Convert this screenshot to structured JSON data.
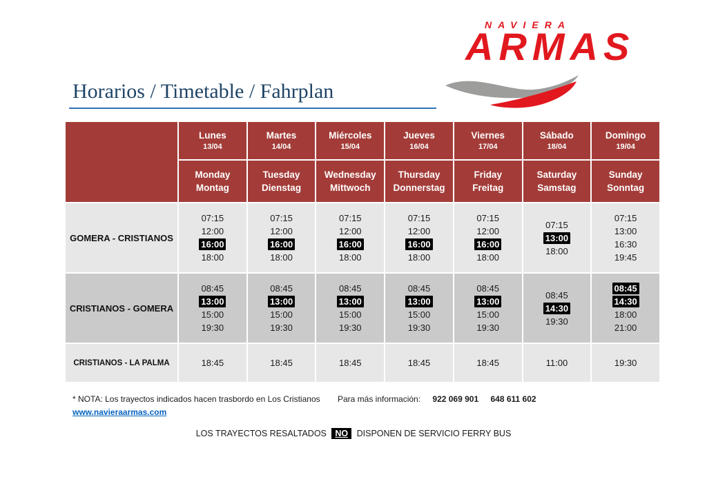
{
  "logo": {
    "naviera": "NAVIERA",
    "armas": "ARMAS"
  },
  "title": "Horarios / Timetable / Fahrplan",
  "colors": {
    "brand_red": "#e2181f",
    "swoosh_gray": "#9d9d9c",
    "title_navy": "#1f4467",
    "rule_blue": "#2e74b5",
    "header_red": "#a33c38",
    "row_light": "#e8e7e7",
    "row_dark": "#cbcaca",
    "highlight_bg": "#000000",
    "link_blue": "#0563c1"
  },
  "table": {
    "days": [
      {
        "name": "Lunes",
        "date": "13/04",
        "en": "Monday",
        "de": "Montag"
      },
      {
        "name": "Martes",
        "date": "14/04",
        "en": "Tuesday",
        "de": "Dienstag"
      },
      {
        "name": "Miércoles",
        "date": "15/04",
        "en": "Wednesday",
        "de": "Mittwoch"
      },
      {
        "name": "Jueves",
        "date": "16/04",
        "en": "Thursday",
        "de": "Donnerstag"
      },
      {
        "name": "Viernes",
        "date": "17/04",
        "en": "Friday",
        "de": "Freitag"
      },
      {
        "name": "Sábado",
        "date": "18/04",
        "en": "Saturday",
        "de": "Samstag"
      },
      {
        "name": "Domingo",
        "date": "19/04",
        "en": "Sunday",
        "de": "Sonntag"
      }
    ],
    "rows": [
      {
        "label": "GOMERA - CRISTIANOS",
        "bg": "#e8e7e7",
        "cells": [
          [
            {
              "time": "07:15",
              "highlighted": false
            },
            {
              "time": "12:00",
              "highlighted": false
            },
            {
              "time": "16:00",
              "highlighted": true
            },
            {
              "time": "18:00",
              "highlighted": false
            }
          ],
          [
            {
              "time": "07:15",
              "highlighted": false
            },
            {
              "time": "12:00",
              "highlighted": false
            },
            {
              "time": "16:00",
              "highlighted": true
            },
            {
              "time": "18:00",
              "highlighted": false
            }
          ],
          [
            {
              "time": "07:15",
              "highlighted": false
            },
            {
              "time": "12:00",
              "highlighted": false
            },
            {
              "time": "16:00",
              "highlighted": true
            },
            {
              "time": "18:00",
              "highlighted": false
            }
          ],
          [
            {
              "time": "07:15",
              "highlighted": false
            },
            {
              "time": "12:00",
              "highlighted": false
            },
            {
              "time": "16:00",
              "highlighted": true
            },
            {
              "time": "18:00",
              "highlighted": false
            }
          ],
          [
            {
              "time": "07:15",
              "highlighted": false
            },
            {
              "time": "12:00",
              "highlighted": false
            },
            {
              "time": "16:00",
              "highlighted": true
            },
            {
              "time": "18:00",
              "highlighted": false
            }
          ],
          [
            {
              "time": "07:15",
              "highlighted": false
            },
            {
              "time": "13:00",
              "highlighted": true
            },
            {
              "time": "18:00",
              "highlighted": false
            }
          ],
          [
            {
              "time": "07:15",
              "highlighted": false
            },
            {
              "time": "13:00",
              "highlighted": false
            },
            {
              "time": "16:30",
              "highlighted": false
            },
            {
              "time": "19:45",
              "highlighted": false
            }
          ]
        ]
      },
      {
        "label": "CRISTIANOS - GOMERA",
        "bg": "#cbcaca",
        "cells": [
          [
            {
              "time": "08:45",
              "highlighted": false
            },
            {
              "time": "13:00",
              "highlighted": true
            },
            {
              "time": "15:00",
              "highlighted": false
            },
            {
              "time": "19:30",
              "highlighted": false
            }
          ],
          [
            {
              "time": "08:45",
              "highlighted": false
            },
            {
              "time": "13:00",
              "highlighted": true
            },
            {
              "time": "15:00",
              "highlighted": false
            },
            {
              "time": "19:30",
              "highlighted": false
            }
          ],
          [
            {
              "time": "08:45",
              "highlighted": false
            },
            {
              "time": "13:00",
              "highlighted": true
            },
            {
              "time": "15:00",
              "highlighted": false
            },
            {
              "time": "19:30",
              "highlighted": false
            }
          ],
          [
            {
              "time": "08:45",
              "highlighted": false
            },
            {
              "time": "13:00",
              "highlighted": true
            },
            {
              "time": "15:00",
              "highlighted": false
            },
            {
              "time": "19:30",
              "highlighted": false
            }
          ],
          [
            {
              "time": "08:45",
              "highlighted": false
            },
            {
              "time": "13:00",
              "highlighted": true
            },
            {
              "time": "15:00",
              "highlighted": false
            },
            {
              "time": "19:30",
              "highlighted": false
            }
          ],
          [
            {
              "time": "08:45",
              "highlighted": false
            },
            {
              "time": "14:30",
              "highlighted": true
            },
            {
              "time": "19:30",
              "highlighted": false
            }
          ],
          [
            {
              "time": "08:45",
              "highlighted": true
            },
            {
              "time": "14:30",
              "highlighted": true
            },
            {
              "time": "18:00",
              "highlighted": false
            },
            {
              "time": "21:00",
              "highlighted": false
            }
          ]
        ]
      },
      {
        "label": "CRISTIANOS - LA PALMA",
        "bg": "#e8e7e7",
        "cells": [
          [
            {
              "time": "18:45",
              "highlighted": false
            }
          ],
          [
            {
              "time": "18:45",
              "highlighted": false
            }
          ],
          [
            {
              "time": "18:45",
              "highlighted": false
            }
          ],
          [
            {
              "time": "18:45",
              "highlighted": false
            }
          ],
          [
            {
              "time": "18:45",
              "highlighted": false
            }
          ],
          [
            {
              "time": "11:00",
              "highlighted": false
            }
          ],
          [
            {
              "time": "19:30",
              "highlighted": false
            }
          ]
        ]
      }
    ]
  },
  "footer": {
    "nota": "* NOTA: Los trayectos indicados hacen trasbordo en Los Cristianos",
    "info_label": "Para más información:",
    "phone1": "922 069 901",
    "phone2": "648 611 602",
    "url": "www.navieraarmas.com",
    "bottom_pre": "LOS TRAYECTOS RESALTADOS",
    "bottom_no": "NO",
    "bottom_post": "DISPONEN DE SERVICIO FERRY BUS"
  }
}
